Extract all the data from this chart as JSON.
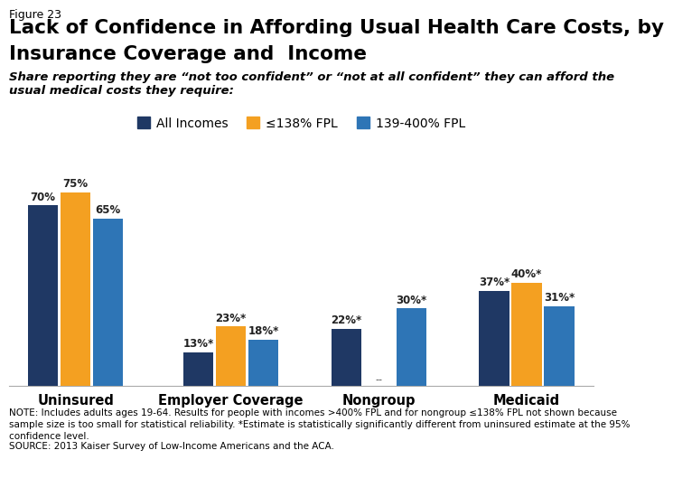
{
  "figure_label": "Figure 23",
  "title_line1": "Lack of Confidence in Affording Usual Health Care Costs, by",
  "title_line2": "Insurance Coverage and  Income",
  "subtitle_line1": "Share reporting they are “not too confident” or “not at all confident” they can afford the",
  "subtitle_line2": "usual medical costs they require:",
  "categories": [
    "Uninsured",
    "Employer Coverage",
    "Nongroup",
    "Medicaid"
  ],
  "legend_labels": [
    "All Incomes",
    "≤138% FPL",
    "139-400% FPL"
  ],
  "colors": [
    "#1f3864",
    "#f4a021",
    "#2e75b6"
  ],
  "values": [
    [
      70,
      75,
      65
    ],
    [
      13,
      23,
      18
    ],
    [
      22,
      null,
      30
    ],
    [
      37,
      40,
      31
    ]
  ],
  "labels": [
    [
      "70%",
      "75%",
      "65%"
    ],
    [
      "13%*",
      "23%*",
      "18%*"
    ],
    [
      "22%*",
      "--",
      "30%*"
    ],
    [
      "37%*",
      "40%*",
      "31%*"
    ]
  ],
  "note_line1": "NOTE: Includes adults ages 19-64. Results for people with incomes >400% FPL and for nongroup ≤138% FPL not shown because",
  "note_line2": "sample size is too small for statistical reliability. *Estimate is statistically significantly different from uninsured estimate at the 95%",
  "note_line3": "confidence level.",
  "source": "SOURCE: 2013 Kaiser Survey of Low-Income Americans and the ACA.",
  "bar_width": 0.22,
  "ylim": [
    0,
    85
  ],
  "background_color": "#ffffff"
}
